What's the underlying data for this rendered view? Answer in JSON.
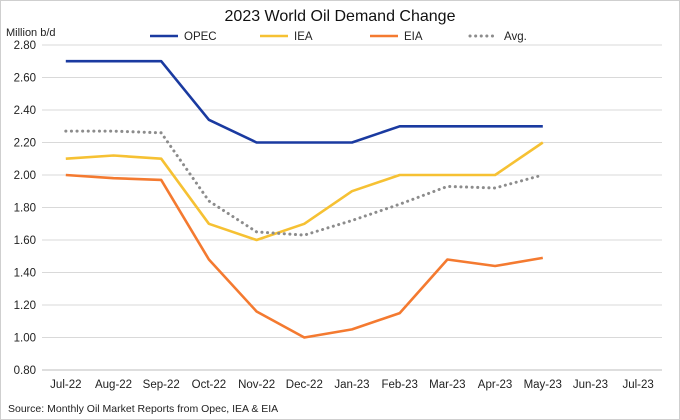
{
  "chart_data": {
    "type": "line",
    "title": "2023 World Oil Demand Change",
    "ylabel": "Million b/d",
    "xlabel": "",
    "categories": [
      "Jul-22",
      "Aug-22",
      "Sep-22",
      "Oct-22",
      "Nov-22",
      "Dec-22",
      "Jan-23",
      "Feb-23",
      "Mar-23",
      "Apr-23",
      "May-23",
      "Jun-23",
      "Jul-23"
    ],
    "ylim": [
      0.8,
      2.8
    ],
    "yticks": [
      "0.80",
      "1.00",
      "1.20",
      "1.40",
      "1.60",
      "1.80",
      "2.00",
      "2.20",
      "2.40",
      "2.60",
      "2.80"
    ],
    "grid": true,
    "legend_position": "top",
    "series": [
      {
        "name": "OPEC",
        "color": "#1a3aa0",
        "style": "solid",
        "values": [
          2.7,
          2.7,
          2.7,
          2.34,
          2.2,
          2.2,
          2.2,
          2.3,
          2.3,
          2.3,
          2.3,
          null,
          null
        ]
      },
      {
        "name": "IEA",
        "color": "#f6c133",
        "style": "solid",
        "values": [
          2.1,
          2.12,
          2.1,
          1.7,
          1.6,
          1.7,
          1.9,
          2.0,
          2.0,
          2.0,
          2.2,
          null,
          null
        ]
      },
      {
        "name": "EIA",
        "color": "#f47a30",
        "style": "solid",
        "values": [
          2.0,
          1.98,
          1.97,
          1.48,
          1.16,
          1.0,
          1.05,
          1.15,
          1.48,
          1.44,
          1.49,
          null,
          null
        ]
      },
      {
        "name": "Avg.",
        "color": "#8c8c8c",
        "style": "dotted",
        "values": [
          2.27,
          2.27,
          2.26,
          1.84,
          1.65,
          1.63,
          1.72,
          1.82,
          1.93,
          1.92,
          2.0,
          null,
          null
        ]
      }
    ],
    "source": "Source: Monthly Oil Market Reports from Opec, IEA & EIA"
  }
}
